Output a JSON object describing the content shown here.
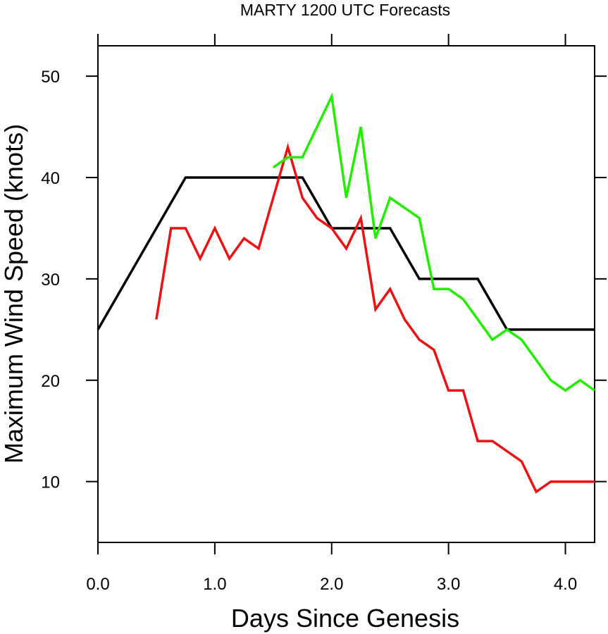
{
  "chart_data": {
    "type": "line",
    "title": "MARTY 1200 UTC Forecasts",
    "xlabel": "Days Since Genesis",
    "ylabel": "Maximum Wind Speed (knots)",
    "xlim": [
      0,
      4.25
    ],
    "ylim": [
      4,
      53
    ],
    "x_ticks": [
      {
        "value": 0,
        "label": "0.0"
      },
      {
        "value": 1,
        "label": "1.0"
      },
      {
        "value": 2,
        "label": "2.0"
      },
      {
        "value": 3,
        "label": "3.0"
      },
      {
        "value": 4,
        "label": "4.0"
      }
    ],
    "y_ticks": [
      {
        "value": 10,
        "label": "10"
      },
      {
        "value": 20,
        "label": "20"
      },
      {
        "value": 30,
        "label": "30"
      },
      {
        "value": 40,
        "label": "40"
      },
      {
        "value": 50,
        "label": "50"
      }
    ],
    "grid": false,
    "series": [
      {
        "color": "#000000",
        "x": [
          0,
          0.75,
          1.75,
          2.0,
          2.5,
          2.75,
          3.25,
          3.5,
          4.25
        ],
        "y": [
          25,
          40,
          40,
          35,
          35,
          30,
          30,
          25,
          25
        ]
      },
      {
        "color": "#ee1111",
        "x": [
          0.5,
          0.625,
          0.75,
          0.875,
          1.0,
          1.125,
          1.25,
          1.375,
          1.5,
          1.625,
          1.75,
          1.875,
          2.0,
          2.125,
          2.25,
          2.375,
          2.5,
          2.625,
          2.75,
          2.875,
          3.0,
          3.125,
          3.25,
          3.375,
          3.5,
          3.625,
          3.75,
          3.875,
          4.0,
          4.125,
          4.25
        ],
        "y": [
          26,
          35,
          35,
          32,
          35,
          32,
          34,
          33,
          38,
          43,
          38,
          36,
          35,
          33,
          36,
          27,
          29,
          26,
          24,
          23,
          19,
          19,
          14,
          14,
          13,
          12,
          9,
          10,
          10,
          10,
          10
        ]
      },
      {
        "color": "#22ee00",
        "x": [
          1.5,
          1.625,
          1.75,
          2.0,
          2.125,
          2.25,
          2.375,
          2.5,
          2.75,
          2.875,
          3.0,
          3.125,
          3.375,
          3.5,
          3.625,
          3.875,
          4.0,
          4.125,
          4.25
        ],
        "y": [
          41,
          42,
          42,
          48,
          38,
          45,
          34,
          38,
          36,
          29,
          29,
          28,
          24,
          25,
          24,
          20,
          19,
          20,
          19
        ]
      }
    ]
  }
}
